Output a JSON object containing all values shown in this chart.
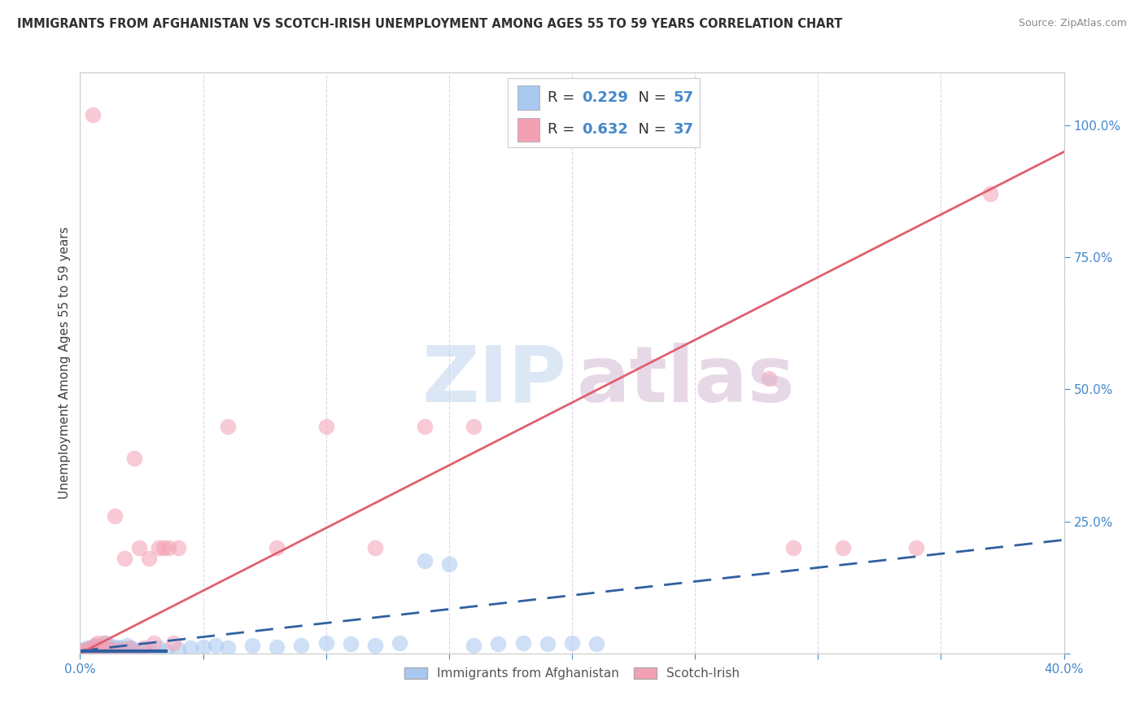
{
  "title": "IMMIGRANTS FROM AFGHANISTAN VS SCOTCH-IRISH UNEMPLOYMENT AMONG AGES 55 TO 59 YEARS CORRELATION CHART",
  "source": "Source: ZipAtlas.com",
  "ylabel": "Unemployment Among Ages 55 to 59 years",
  "xlim": [
    0.0,
    0.4
  ],
  "ylim": [
    0.0,
    1.1
  ],
  "xticks": [
    0.0,
    0.05,
    0.1,
    0.15,
    0.2,
    0.25,
    0.3,
    0.35,
    0.4
  ],
  "xtick_labels": [
    "0.0%",
    "",
    "",
    "",
    "",
    "",
    "",
    "",
    "40.0%"
  ],
  "yticks_right": [
    0.0,
    0.25,
    0.5,
    0.75,
    1.0
  ],
  "ytick_right_labels": [
    "",
    "25.0%",
    "50.0%",
    "75.0%",
    "100.0%"
  ],
  "legend_r1": "R = 0.229",
  "legend_n1": "N = 57",
  "legend_r2": "R = 0.632",
  "legend_n2": "N = 37",
  "afghanistan_color": "#a8c8f0",
  "scotch_color": "#f4a0b4",
  "afghanistan_line_color": "#3060a0",
  "scotch_line_color": "#e06070",
  "background_color": "#ffffff",
  "grid_color": "#ddd0e8",
  "watermark_zip_color": "#c0d4ee",
  "watermark_atlas_color": "#d4b8d4",
  "afg_x": [
    0.001,
    0.002,
    0.002,
    0.003,
    0.003,
    0.004,
    0.004,
    0.005,
    0.005,
    0.006,
    0.006,
    0.007,
    0.007,
    0.008,
    0.008,
    0.009,
    0.009,
    0.01,
    0.01,
    0.011,
    0.012,
    0.012,
    0.013,
    0.014,
    0.015,
    0.015,
    0.016,
    0.017,
    0.018,
    0.019,
    0.02,
    0.021,
    0.022,
    0.025,
    0.028,
    0.032,
    0.035,
    0.04,
    0.045,
    0.05,
    0.055,
    0.06,
    0.07,
    0.08,
    0.09,
    0.1,
    0.11,
    0.12,
    0.13,
    0.14,
    0.15,
    0.16,
    0.17,
    0.18,
    0.19,
    0.2,
    0.21
  ],
  "afg_y": [
    0.005,
    0.005,
    0.008,
    0.005,
    0.01,
    0.005,
    0.008,
    0.005,
    0.012,
    0.005,
    0.015,
    0.005,
    0.01,
    0.005,
    0.008,
    0.005,
    0.01,
    0.005,
    0.02,
    0.008,
    0.005,
    0.015,
    0.005,
    0.01,
    0.005,
    0.012,
    0.005,
    0.01,
    0.005,
    0.015,
    0.005,
    0.01,
    0.005,
    0.008,
    0.005,
    0.01,
    0.005,
    0.008,
    0.01,
    0.012,
    0.015,
    0.01,
    0.015,
    0.012,
    0.015,
    0.02,
    0.018,
    0.015,
    0.02,
    0.175,
    0.17,
    0.015,
    0.018,
    0.02,
    0.018,
    0.02,
    0.018
  ],
  "si_x": [
    0.001,
    0.002,
    0.003,
    0.004,
    0.005,
    0.006,
    0.007,
    0.008,
    0.009,
    0.01,
    0.012,
    0.014,
    0.016,
    0.018,
    0.02,
    0.022,
    0.024,
    0.026,
    0.028,
    0.03,
    0.032,
    0.034,
    0.036,
    0.038,
    0.04,
    0.06,
    0.08,
    0.1,
    0.12,
    0.14,
    0.16,
    0.28,
    0.29,
    0.31,
    0.34,
    0.37,
    0.005
  ],
  "si_y": [
    0.005,
    0.005,
    0.008,
    0.01,
    0.005,
    0.015,
    0.02,
    0.005,
    0.01,
    0.02,
    0.008,
    0.26,
    0.008,
    0.18,
    0.01,
    0.37,
    0.2,
    0.01,
    0.18,
    0.02,
    0.2,
    0.2,
    0.2,
    0.02,
    0.2,
    0.43,
    0.2,
    0.43,
    0.2,
    0.43,
    0.43,
    0.52,
    0.2,
    0.2,
    0.2,
    0.87,
    1.02
  ],
  "afg_trend_x": [
    0.0,
    0.4
  ],
  "afg_trend_y": [
    0.005,
    0.215
  ],
  "si_trend_x": [
    0.0,
    0.4
  ],
  "si_trend_y": [
    0.0,
    0.95
  ]
}
